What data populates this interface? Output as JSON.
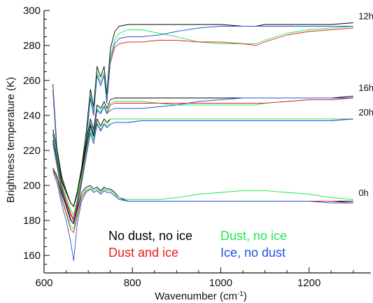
{
  "chart_data": {
    "type": "line",
    "xlabel": "Wavenumber (cm",
    "xlabel_sup": "-1",
    "xlabel_close": ")",
    "ylabel": "Brightness temperature (K)",
    "xlim": [
      600,
      1340
    ],
    "ylim": [
      150,
      300
    ],
    "xticks": [
      600,
      800,
      1000,
      1200
    ],
    "yticks": [
      160,
      180,
      200,
      220,
      240,
      260,
      280,
      300
    ],
    "x": [
      620,
      630,
      640,
      650,
      660,
      667,
      675,
      685,
      695,
      705,
      712,
      720,
      728,
      736,
      742,
      750,
      760,
      770,
      790,
      820,
      860,
      900,
      950,
      1000,
      1050,
      1080,
      1100,
      1150,
      1200,
      1250,
      1300
    ],
    "time_labels": [
      {
        "text": "12h",
        "x": 1312,
        "y": 295
      },
      {
        "text": "16h",
        "x": 1312,
        "y": 254
      },
      {
        "text": "20h",
        "x": 1312,
        "y": 240
      },
      {
        "text": "0h",
        "x": 1312,
        "y": 194
      }
    ],
    "legend": [
      {
        "text": "No dust, no ice",
        "color": "#000000"
      },
      {
        "text": "Dust, no ice",
        "color": "#22e655"
      },
      {
        "text": "Dust and ice",
        "color": "#e8211e"
      },
      {
        "text": "Ice, no dust",
        "color": "#2255dd"
      }
    ],
    "series": [
      {
        "time": "12h",
        "scenario": "No dust, no ice",
        "color": "#000000",
        "values": [
          258,
          218,
          203,
          196,
          190,
          188,
          195,
          210,
          230,
          255,
          245,
          268,
          262,
          268,
          252,
          278,
          288,
          291,
          292,
          292,
          292,
          292,
          292,
          292,
          291,
          291,
          292,
          292,
          292,
          292,
          293
        ]
      },
      {
        "time": "12h",
        "scenario": "Dust, no ice",
        "color": "#22e655",
        "values": [
          256,
          216,
          200,
          193,
          186,
          183,
          192,
          207,
          227,
          252,
          242,
          265,
          259,
          265,
          249,
          274,
          283,
          287,
          289,
          289,
          287,
          285,
          282,
          281,
          281,
          281,
          283,
          287,
          289,
          290,
          291
        ]
      },
      {
        "time": "12h",
        "scenario": "Dust and ice",
        "color": "#e8211e",
        "values": [
          255,
          215,
          199,
          191,
          184,
          181,
          190,
          205,
          225,
          250,
          240,
          263,
          257,
          263,
          247,
          270,
          279,
          281,
          282,
          282,
          283,
          283,
          282,
          282,
          281,
          280,
          282,
          286,
          288,
          289,
          290
        ]
      },
      {
        "time": "12h",
        "scenario": "Ice, no dust",
        "color": "#2255dd",
        "values": [
          255,
          215,
          198,
          190,
          183,
          180,
          189,
          204,
          224,
          250,
          240,
          263,
          257,
          263,
          247,
          272,
          281,
          284,
          285,
          285,
          286,
          288,
          290,
          291,
          291,
          291,
          291,
          291,
          291,
          291,
          291
        ]
      },
      {
        "time": "16h",
        "scenario": "No dust, no ice",
        "color": "#000000",
        "values": [
          232,
          220,
          205,
          197,
          190,
          188,
          196,
          210,
          225,
          238,
          232,
          246,
          244,
          248,
          244,
          249,
          250,
          250,
          250,
          250,
          250,
          250,
          250,
          250,
          250,
          250,
          250,
          250,
          250,
          250,
          251
        ]
      },
      {
        "time": "16h",
        "scenario": "Dust, no ice",
        "color": "#22e655",
        "values": [
          230,
          217,
          201,
          193,
          186,
          183,
          192,
          207,
          222,
          236,
          230,
          244,
          242,
          246,
          242,
          247,
          248,
          248,
          248,
          248,
          247,
          246,
          246,
          246,
          246,
          246,
          247,
          248,
          249,
          249,
          250
        ]
      },
      {
        "time": "16h",
        "scenario": "Dust and ice",
        "color": "#e8211e",
        "values": [
          229,
          215,
          199,
          191,
          184,
          181,
          190,
          205,
          220,
          235,
          229,
          243,
          241,
          245,
          241,
          246,
          247,
          247,
          247,
          247,
          247,
          247,
          247,
          247,
          247,
          247,
          247,
          248,
          249,
          249,
          250
        ]
      },
      {
        "time": "16h",
        "scenario": "Ice, no dust",
        "color": "#2255dd",
        "values": [
          229,
          214,
          197,
          189,
          181,
          179,
          188,
          203,
          219,
          235,
          229,
          243,
          241,
          245,
          241,
          243,
          244,
          244,
          244,
          244,
          245,
          246,
          248,
          249,
          250,
          250,
          250,
          250,
          250,
          250,
          250
        ]
      },
      {
        "time": "20h",
        "scenario": "No dust, no ice",
        "color": "#000000",
        "values": [
          226,
          213,
          202,
          196,
          190,
          188,
          196,
          208,
          222,
          234,
          228,
          238,
          234,
          238,
          236,
          238,
          238,
          238,
          238,
          238,
          238,
          238,
          238,
          238,
          238,
          238,
          238,
          238,
          238,
          238,
          238
        ]
      },
      {
        "time": "20h",
        "scenario": "Dust, no ice",
        "color": "#22e655",
        "values": [
          225,
          212,
          200,
          193,
          186,
          183,
          192,
          205,
          219,
          232,
          226,
          236,
          232,
          236,
          234,
          238,
          238,
          238,
          238,
          238,
          238,
          238,
          238,
          238,
          238,
          238,
          238,
          238,
          238,
          238,
          238
        ]
      },
      {
        "time": "20h",
        "scenario": "Dust and ice",
        "color": "#e8211e",
        "values": [
          224,
          211,
          198,
          190,
          183,
          180,
          189,
          203,
          217,
          230,
          224,
          235,
          231,
          235,
          233,
          235,
          236,
          236,
          236,
          237,
          237,
          237,
          237,
          237,
          237,
          237,
          237,
          237,
          237,
          237,
          238
        ]
      },
      {
        "time": "20h",
        "scenario": "Ice, no dust",
        "color": "#2255dd",
        "values": [
          224,
          210,
          196,
          188,
          180,
          178,
          187,
          201,
          216,
          230,
          224,
          235,
          231,
          235,
          233,
          235,
          236,
          236,
          236,
          237,
          237,
          237,
          237,
          237,
          237,
          237,
          237,
          237,
          237,
          237,
          238
        ]
      },
      {
        "time": "0h",
        "scenario": "No dust, no ice",
        "color": "#000000",
        "values": [
          210,
          205,
          195,
          188,
          180,
          178,
          186,
          196,
          199,
          200,
          198,
          199,
          197,
          199,
          198,
          198,
          196,
          193,
          191,
          191,
          191,
          191,
          191,
          191,
          191,
          191,
          191,
          191,
          191,
          191,
          191
        ]
      },
      {
        "time": "0h",
        "scenario": "Dust, no ice",
        "color": "#22e655",
        "values": [
          209,
          204,
          193,
          185,
          177,
          175,
          184,
          194,
          198,
          199,
          197,
          198,
          196,
          198,
          197,
          197,
          195,
          193,
          192,
          192,
          192,
          193,
          195,
          196,
          197,
          197,
          197,
          196,
          195,
          193,
          192
        ]
      },
      {
        "time": "0h",
        "scenario": "Dust and ice",
        "color": "#e8211e",
        "values": [
          209,
          203,
          192,
          184,
          175,
          173,
          182,
          193,
          197,
          198,
          196,
          197,
          195,
          197,
          196,
          196,
          194,
          192,
          191,
          191,
          191,
          191,
          191,
          191,
          191,
          191,
          191,
          191,
          191,
          191,
          190
        ]
      },
      {
        "time": "0h",
        "scenario": "Ice, no dust",
        "color": "#2255dd",
        "values": [
          208,
          201,
          189,
          180,
          168,
          157,
          178,
          191,
          196,
          198,
          196,
          197,
          195,
          197,
          196,
          196,
          194,
          192,
          191,
          191,
          191,
          191,
          191,
          191,
          191,
          191,
          191,
          191,
          191,
          190,
          190
        ]
      }
    ]
  }
}
